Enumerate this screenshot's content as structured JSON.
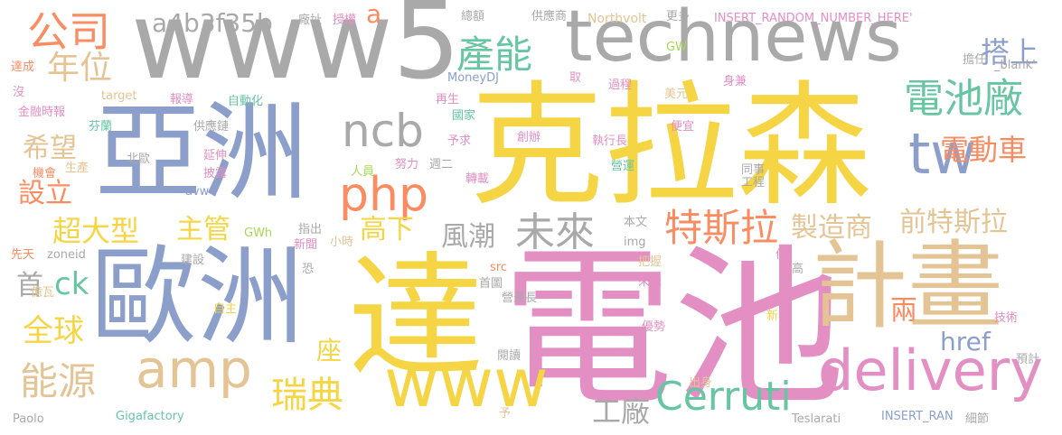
{
  "colors": {
    "background": "#ffffff",
    "yellow": "#f5d544",
    "pink": "#e38fc4",
    "blue": "#8c9fcb",
    "gray": "#a9a9a9",
    "tan": "#e4c494",
    "orange": "#fa8c62",
    "green": "#67c5a4",
    "lime": "#a6d853"
  },
  "words": {
    "dianchi": "電池",
    "kelasen": "克拉森",
    "www5": "www5",
    "yazhou": "亞洲",
    "ouzhou": "歐洲",
    "da": "達",
    "jihua": "計畫",
    "technews": "technews",
    "www": "www",
    "delivery": "delivery",
    "amp": "amp",
    "php": "php",
    "tw": "tw",
    "ncb": "ncb",
    "gongsi": "公司",
    "nianwei": "年位",
    "a4b3f35b": "a4b3f35b",
    "channeng": "產能",
    "dianchichang": "電池廠",
    "dadong": "搭上",
    "diandongche": "電動車",
    "xiwang": "希望",
    "sheli": "設立",
    "chaodaxing": "超大型",
    "zhuguan": "主管",
    "gaoxia": "高下",
    "fengchao": "風潮",
    "weilai": "未來",
    "tesila": "特斯拉",
    "zhizaoshang": "製造商",
    "qiantesila": "前特斯拉",
    "shou": "首",
    "ck": "ck",
    "quanqiu": "全球",
    "nengyuan": "能源",
    "ruidian": "瑞典",
    "zuo": "座",
    "gongchang": "工廠",
    "cerruti": "Cerruti",
    "href": "href",
    "liang": "兩",
    "a": "a",
    "zongjing": "總額",
    "gongyingshang": "供應商",
    "northvolt": "Northvolt",
    "gengduo": "更多",
    "insert_random": "INSERT_RANDOM_NUMBER_HERE'",
    "shouquan": "授權",
    "changzhi": "廠址",
    "gw": "GW",
    "danren": "擔任",
    "blank": "_blank'",
    "dacheng": "達成",
    "mei": "沒",
    "target": "target",
    "baodao": "報導",
    "zidonghua": "自動化",
    "zaisheng": "再生",
    "moneydj": "MoneyDJ",
    "qu": "取",
    "guocheng": "過程",
    "meiyuan": "美元",
    "shenjian": "身兼",
    "jinrongshibao": "金融時報",
    "fenlan": "芬蘭",
    "guojia": "國家",
    "gongyinglian": "供應鏈",
    "yuqiu": "予求",
    "chuangban": "創辦",
    "zhixingzhang": "執行長",
    "pianyi": "便宜",
    "beiou": "北歐",
    "shengchan": "生產",
    "jihui": "機會",
    "yanshen": "延伸",
    "pilu": "披露",
    "avw": "avw",
    "renyuan": "人員",
    "nuli": "努力",
    "zhouer": "週二",
    "yingyun": "營運",
    "tongshi": "同事",
    "gongcheng": "工程",
    "zhuanzai": "轉載",
    "gwh": "GWh",
    "zhichu": "指出",
    "xinwen": "新聞",
    "xiaoshi": "小時",
    "benwen": "本文",
    "img": "img",
    "yi": "億",
    "xiantian": "先天",
    "zoneid": "zoneid",
    "jianshe": "建設",
    "kong": "恐",
    "src": "src",
    "bawo": "把握",
    "shouye": "首圖",
    "yingyunzhang": "營運長",
    "laiyuan": "來源",
    "gao": "高",
    "yiwa": "億瓦",
    "zizhu": "自主",
    "xin": "新",
    "jishu": "技術",
    "youshi": "優勢",
    "yuedu": "閱讀",
    "chushen": "出身",
    "yuji": "預計",
    "yu": "予",
    "paolo": "Paolo",
    "gigafactory": "Gigafactory",
    "teslarati": "Teslarati",
    "insert_ran": "INSERT_RAN",
    "xijie": "細節"
  }
}
